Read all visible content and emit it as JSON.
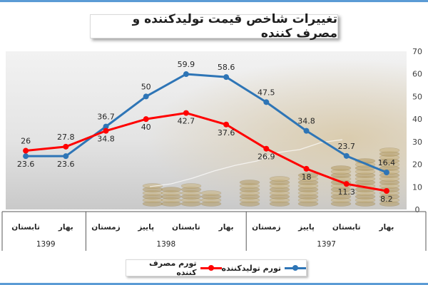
{
  "title": "تغییرات شاخص قیمت تولیدکننده و مصرف کننده",
  "legend": {
    "producer": "تورم تولیدکننده",
    "consumer": "تورم مصرف کننده"
  },
  "colors": {
    "producer": "#2e75b6",
    "consumer": "#ff0000",
    "frame": "#5b9bd5"
  },
  "chart_data": {
    "type": "line",
    "categories": [
      "تابستان 1399",
      "بهار 1399",
      "زمستان 1398",
      "پاییز 1398",
      "تابستان 1398",
      "بهار 1398",
      "زمستان 1397",
      "پاییز 1397",
      "تابستان 1397",
      "بهار 1397"
    ],
    "series": [
      {
        "name": "تورم تولیدکننده",
        "color": "#2e75b6",
        "values": [
          23.6,
          23.6,
          36.7,
          50,
          59.9,
          58.6,
          47.5,
          34.8,
          23.7,
          16.4
        ]
      },
      {
        "name": "تورم مصرف کننده",
        "color": "#ff0000",
        "values": [
          26,
          27.8,
          34.8,
          40,
          42.7,
          37.6,
          26.9,
          18,
          11.3,
          8.2
        ]
      }
    ],
    "ylim": [
      0,
      70
    ],
    "yticks": [
      0,
      10,
      20,
      30,
      40,
      50,
      60,
      70
    ],
    "season_labels": [
      "تابستان",
      "بهار",
      "زمستان",
      "پاییز",
      "تابستان",
      "بهار",
      "زمستان",
      "پاییز",
      "تابستان",
      "بهار"
    ],
    "year_groups": [
      {
        "year": "1399",
        "count": 2
      },
      {
        "year": "1398",
        "count": 4
      },
      {
        "year": "1397",
        "count": 4
      }
    ],
    "y_axis_side": "right",
    "grid": false,
    "legend_position": "bottom"
  }
}
